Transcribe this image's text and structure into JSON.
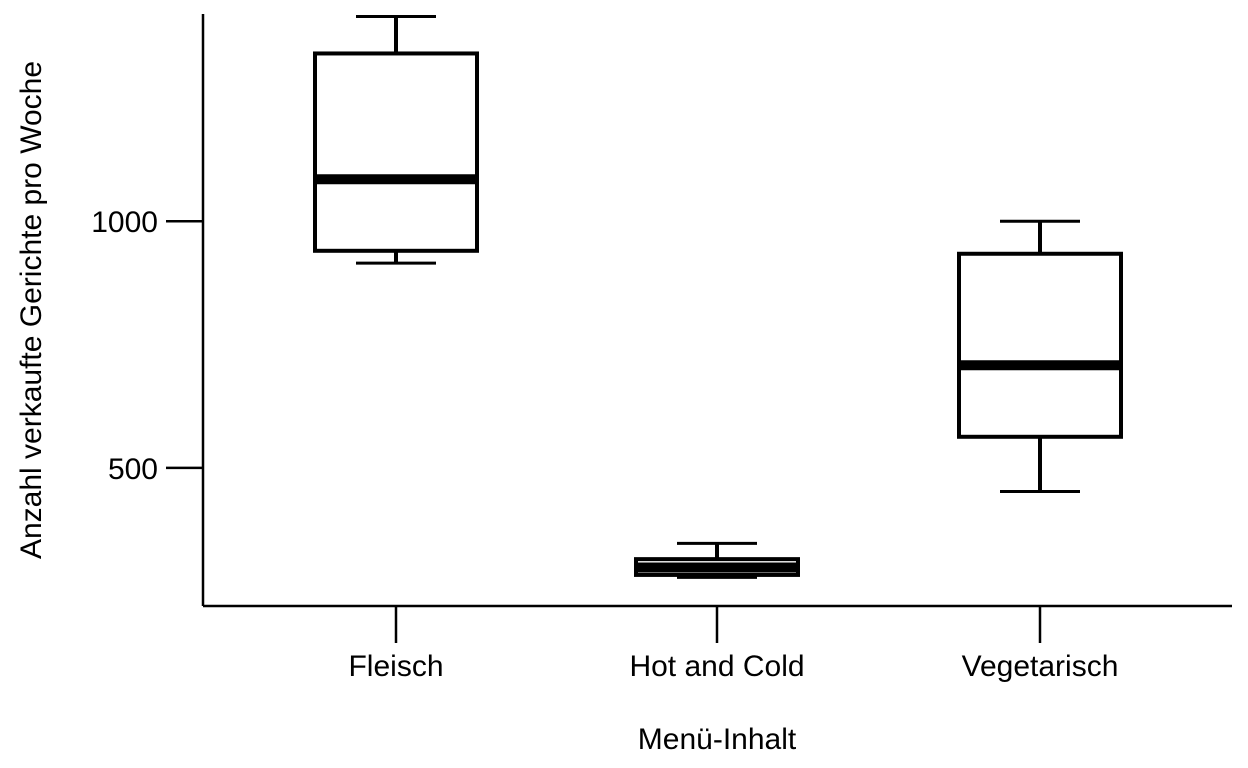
{
  "chart_data": {
    "type": "boxplot",
    "title": "",
    "xlabel": "Menü-Inhalt",
    "ylabel": "Anzahl verkaufte Gerichte pro Woche",
    "ylim": [
      220,
      1420
    ],
    "yticks": [
      500,
      1000
    ],
    "ytick_labels": [
      "500",
      "1000"
    ],
    "grid": false,
    "legend": "none",
    "colors": {
      "box_fill": "#ffffff",
      "stroke": "#000000",
      "background": "#ffffff"
    },
    "categories": [
      "Fleisch",
      "Hot and Cold",
      "Vegetarisch"
    ],
    "boxes": [
      {
        "category": "Fleisch",
        "whisker_low": 915,
        "q1": 940,
        "median": 1085,
        "q3": 1340,
        "whisker_high": 1415
      },
      {
        "category": "Hot and Cold",
        "whisker_low": 278,
        "q1": 283,
        "median": 298,
        "q3": 315,
        "whisker_high": 347
      },
      {
        "category": "Vegetarisch",
        "whisker_low": 452,
        "q1": 563,
        "median": 708,
        "q3": 934,
        "whisker_high": 1000
      }
    ]
  }
}
